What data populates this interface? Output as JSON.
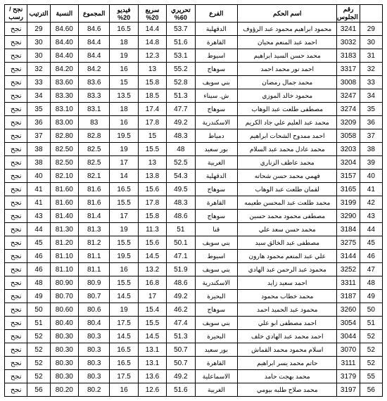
{
  "headers": {
    "row_no": "",
    "pass_no": "رقم الجلوس",
    "name": "اسم الحكم",
    "branch": "الفرع",
    "hdr60": "تحريري 60%",
    "fast": "سريع 20%",
    "video": "فيديو 20%",
    "total": "المجموع",
    "pct": "النسبة",
    "rank": "الترتيب",
    "result": "نجح / رسب"
  },
  "rows": [
    {
      "n": "29",
      "pass": "3241",
      "name": "محمود ابراهيم محمود عبد الرؤوف",
      "branch": "الدقهلية",
      "h": "53.7",
      "f": "14.4",
      "v": "16.5",
      "t": "84.6",
      "p": "84.60",
      "r": "29",
      "res": "نجح"
    },
    {
      "n": "30",
      "pass": "3032",
      "name": "احمد عبد المنعم محيان",
      "branch": "القاهرة",
      "h": "51.6",
      "f": "14.8",
      "v": "18",
      "t": "84.4",
      "p": "84.40",
      "r": "30",
      "res": "نجح"
    },
    {
      "n": "31",
      "pass": "3183",
      "name": "محمد حسن السيد ابراهيم",
      "branch": "اسيوط",
      "h": "53.1",
      "f": "12.3",
      "v": "19",
      "t": "84.4",
      "p": "84.40",
      "r": "30",
      "res": "نجح"
    },
    {
      "n": "32",
      "pass": "3317",
      "name": "احمد نور محمد احمد",
      "branch": "سوهاج",
      "h": "55.2",
      "f": "13",
      "v": "16",
      "t": "84.2",
      "p": "84.20",
      "r": "32",
      "res": "نجح"
    },
    {
      "n": "33",
      "pass": "3008",
      "name": "محمد جمال رمضان",
      "branch": "بني سويف",
      "h": "52.8",
      "f": "15.8",
      "v": "15",
      "t": "83.6",
      "p": "83.60",
      "r": "33",
      "res": "نجح"
    },
    {
      "n": "34",
      "pass": "3247",
      "name": "محمود خالد الموزي",
      "branch": "ش. سيناء",
      "h": "51.3",
      "f": "18.5",
      "v": "13.5",
      "t": "83.3",
      "p": "83.30",
      "r": "34",
      "res": "نجح"
    },
    {
      "n": "35",
      "pass": "3274",
      "name": "مصطفى طلعت عبد الوهاب",
      "branch": "سوهاج",
      "h": "47.7",
      "f": "17.4",
      "v": "18",
      "t": "83.1",
      "p": "83.10",
      "r": "35",
      "res": "نجح"
    },
    {
      "n": "36",
      "pass": "3209",
      "name": "محمد عبد العليم علي جاد الكريم",
      "branch": "الاسكندرية",
      "h": "49.2",
      "f": "17.8",
      "v": "16",
      "t": "83",
      "p": "83.00",
      "r": "36",
      "res": "نجح"
    },
    {
      "n": "37",
      "pass": "3058",
      "name": "احمد ممدوح الشحات ابراهيم",
      "branch": "دمياط",
      "h": "48.3",
      "f": "15",
      "v": "19.5",
      "t": "82.8",
      "p": "82.80",
      "r": "37",
      "res": "نجح"
    },
    {
      "n": "38",
      "pass": "3203",
      "name": "محمد عادل محمد عبد السلام",
      "branch": "بور سعيد",
      "h": "48",
      "f": "15.5",
      "v": "19",
      "t": "82.5",
      "p": "82.50",
      "r": "38",
      "res": "نجح"
    },
    {
      "n": "39",
      "pass": "3204",
      "name": "محمد عاطف الزناري",
      "branch": "الغربية",
      "h": "52.5",
      "f": "13",
      "v": "17",
      "t": "82.5",
      "p": "82.50",
      "r": "38",
      "res": "نجح"
    },
    {
      "n": "40",
      "pass": "3157",
      "name": "فهمي محمد حسن شحاته",
      "branch": "الدقهلية",
      "h": "54.3",
      "f": "13.8",
      "v": "14",
      "t": "82.1",
      "p": "82.10",
      "r": "40",
      "res": "نجح"
    },
    {
      "n": "41",
      "pass": "3165",
      "name": "لقمان طلعت عبد الوهاب",
      "branch": "سوهاج",
      "h": "49.5",
      "f": "15.6",
      "v": "16.5",
      "t": "81.6",
      "p": "81.60",
      "r": "41",
      "res": "نجح"
    },
    {
      "n": "42",
      "pass": "3199",
      "name": "محمد طلعت عبد المحسن طعيمه",
      "branch": "القاهرة",
      "h": "48.3",
      "f": "17.8",
      "v": "15.5",
      "t": "81.6",
      "p": "81.60",
      "r": "41",
      "res": "نجح"
    },
    {
      "n": "43",
      "pass": "3290",
      "name": "مصطفى محمود محمد حسين",
      "branch": "سوهاج",
      "h": "48.6",
      "f": "15.8",
      "v": "17",
      "t": "81.4",
      "p": "81.40",
      "r": "43",
      "res": "نجح"
    },
    {
      "n": "44",
      "pass": "3184",
      "name": "محمد حسن سعد علي",
      "branch": "قنا",
      "h": "51",
      "f": "11.3",
      "v": "19",
      "t": "81.3",
      "p": "81.30",
      "r": "44",
      "res": "نجح"
    },
    {
      "n": "45",
      "pass": "3275",
      "name": "مصطفى عبد الخالق سيد",
      "branch": "بني سويف",
      "h": "50.1",
      "f": "15.6",
      "v": "15.5",
      "t": "81.2",
      "p": "81.20",
      "r": "45",
      "res": "نجح"
    },
    {
      "n": "46",
      "pass": "3144",
      "name": "علي عبد المنعم محمود هارون",
      "branch": "اسيوط",
      "h": "47.1",
      "f": "14.5",
      "v": "19.5",
      "t": "81.1",
      "p": "81.10",
      "r": "46",
      "res": "نجح"
    },
    {
      "n": "47",
      "pass": "3252",
      "name": "محمود عبد الرحمن عبد الهادي",
      "branch": "بني سويف",
      "h": "51.9",
      "f": "13.2",
      "v": "16",
      "t": "81.1",
      "p": "81.10",
      "r": "46",
      "res": "نجح"
    },
    {
      "n": "48",
      "pass": "3311",
      "name": "احمد سعيد زايد",
      "branch": "الاسكندرية",
      "h": "48.6",
      "f": "16.8",
      "v": "15.5",
      "t": "80.9",
      "p": "80.90",
      "r": "48",
      "res": "نجح"
    },
    {
      "n": "49",
      "pass": "3187",
      "name": "محمد خطاب محمود",
      "branch": "البحيرة",
      "h": "49.2",
      "f": "17",
      "v": "14.5",
      "t": "80.7",
      "p": "80.70",
      "r": "49",
      "res": "نجح"
    },
    {
      "n": "50",
      "pass": "3260",
      "name": "محمود عبد الحميد احمد",
      "branch": "سوهاج",
      "h": "46.2",
      "f": "15.4",
      "v": "19",
      "t": "80.6",
      "p": "80.60",
      "r": "50",
      "res": "نجح"
    },
    {
      "n": "51",
      "pass": "3054",
      "name": "احمد مصطفى ابو علي",
      "branch": "بني سويف",
      "h": "47.4",
      "f": "15.5",
      "v": "17.5",
      "t": "80.4",
      "p": "80.40",
      "r": "51",
      "res": "نجح"
    },
    {
      "n": "52",
      "pass": "3044",
      "name": "احمد محمد عبد الهادي خلف",
      "branch": "البحيرة",
      "h": "51.3",
      "f": "14.5",
      "v": "14.5",
      "t": "80.3",
      "p": "80.30",
      "r": "52",
      "res": "نجح"
    },
    {
      "n": "52",
      "pass": "3070",
      "name": "اسلام محمود محمد القماش",
      "branch": "بور سعيد",
      "h": "50.7",
      "f": "13.1",
      "v": "16.5",
      "t": "80.3",
      "p": "80.30",
      "r": "52",
      "res": "نجح"
    },
    {
      "n": "52",
      "pass": "3111",
      "name": "حاتم محمد يسر ابراهيم",
      "branch": "القاهرة",
      "h": "50.7",
      "f": "13.1",
      "v": "16.5",
      "t": "80.3",
      "p": "80.30",
      "r": "52",
      "res": "نجح"
    },
    {
      "n": "55",
      "pass": "3179",
      "name": "محمد بهجت حامد",
      "branch": "الاسماعلية",
      "h": "49.2",
      "f": "13.6",
      "v": "17.5",
      "t": "80.3",
      "p": "80.30",
      "r": "52",
      "res": "نجح"
    },
    {
      "n": "56",
      "pass": "3197",
      "name": "محمد صلاح طلبه بيومي",
      "branch": "الغربية",
      "h": "51.6",
      "f": "12.6",
      "v": "16",
      "t": "80.2",
      "p": "80.20",
      "r": "56",
      "res": "نجح"
    }
  ]
}
